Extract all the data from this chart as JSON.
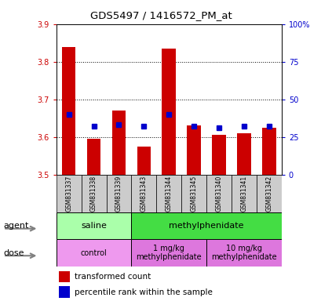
{
  "title": "GDS5497 / 1416572_PM_at",
  "samples": [
    "GSM831337",
    "GSM831338",
    "GSM831339",
    "GSM831343",
    "GSM831344",
    "GSM831345",
    "GSM831340",
    "GSM831341",
    "GSM831342"
  ],
  "bar_values": [
    3.84,
    3.595,
    3.67,
    3.575,
    3.835,
    3.63,
    3.605,
    3.61,
    3.625
  ],
  "bar_base": 3.5,
  "percentile_values": [
    40,
    32,
    33,
    32,
    40,
    32,
    31,
    32,
    32
  ],
  "ylim_left": [
    3.5,
    3.9
  ],
  "ylim_right": [
    0,
    100
  ],
  "yticks_left": [
    3.5,
    3.6,
    3.7,
    3.8,
    3.9
  ],
  "yticks_right": [
    0,
    25,
    50,
    75,
    100
  ],
  "ytick_labels_right": [
    "0",
    "25",
    "50",
    "75",
    "100%"
  ],
  "bar_color": "#cc0000",
  "percentile_color": "#0000cc",
  "agent_groups": [
    {
      "label": "saline",
      "start": 0,
      "end": 3,
      "color": "#aaffaa"
    },
    {
      "label": "methylphenidate",
      "start": 3,
      "end": 9,
      "color": "#44dd44"
    }
  ],
  "dose_groups": [
    {
      "label": "control",
      "start": 0,
      "end": 3,
      "color": "#ee99ee"
    },
    {
      "label": "1 mg/kg\nmethylphenidate",
      "start": 3,
      "end": 6,
      "color": "#dd77dd"
    },
    {
      "label": "10 mg/kg\nmethylphenidate",
      "start": 6,
      "end": 9,
      "color": "#dd77dd"
    }
  ],
  "legend_red_label": "transformed count",
  "legend_blue_label": "percentile rank within the sample",
  "bg_color": "#ffffff",
  "sample_bg_color": "#cccccc"
}
